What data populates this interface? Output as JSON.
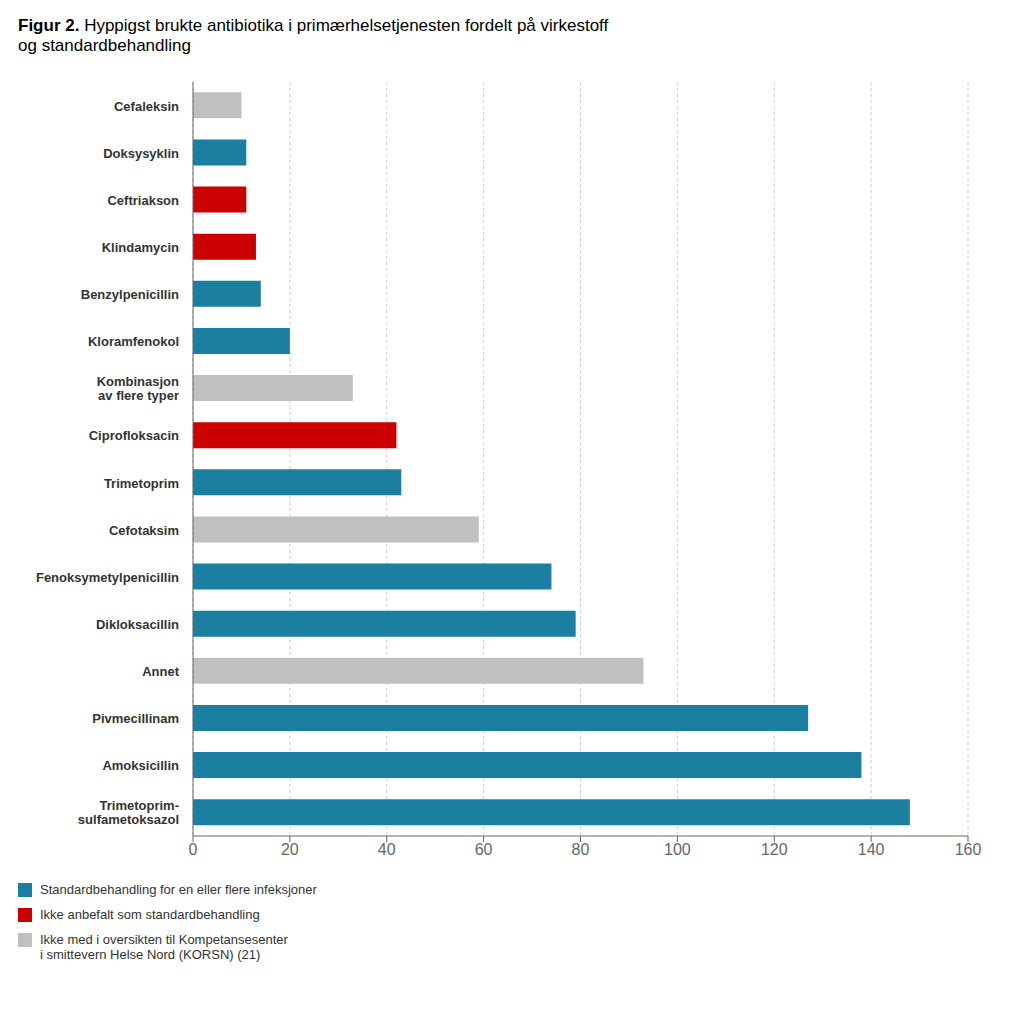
{
  "chart_data": {
    "type": "bar",
    "title": "Figur 2. Hyppigst brukte antibiotika i primærhelsetjenesten fordelt på virkestoff\nog standardbehandling",
    "orientation": "horizontal",
    "stacked": true,
    "categories": [
      "Trimetoprim-\nsulfametoksazol",
      "Amoksicillin",
      "Pivmecillinam",
      "Annet",
      "Dikloksacillin",
      "Fenoksymetylpenicillin",
      "Cefotaksim",
      "Trimetoprim",
      "Ciprofloksacin",
      "Kombinasjon\nav flere typer",
      "Kloramfenokol",
      "Benzylpenicillin",
      "Klindamycin",
      "Ceftriakson",
      "Doksysyklin",
      "Cefaleksin"
    ],
    "series": [
      {
        "name": "Standardbehandling for en eller flere infeksjoner",
        "color": "#1a7fa0",
        "values": [
          148,
          138,
          127,
          null,
          79,
          74,
          null,
          43,
          null,
          null,
          20,
          14,
          null,
          null,
          11,
          null
        ]
      },
      {
        "name": "Ikke anbefalt som standardbehandling",
        "color": "#cc0000",
        "values": [
          null,
          null,
          null,
          null,
          null,
          null,
          null,
          null,
          42,
          null,
          null,
          null,
          13,
          11,
          null,
          null
        ]
      },
      {
        "name": "Ikke med i oversikten til Kompetansesenter\ni smittevern Helse Nord (KORSN) (21)",
        "color": "#c0c0c0",
        "values": [
          null,
          null,
          null,
          93,
          null,
          null,
          59,
          null,
          null,
          33,
          null,
          null,
          null,
          null,
          null,
          10
        ]
      }
    ],
    "xlim": [
      0,
      160
    ],
    "xticks": [
      0,
      20,
      40,
      60,
      80,
      100,
      120,
      140,
      160
    ],
    "grid": true,
    "legend": "lower right"
  }
}
